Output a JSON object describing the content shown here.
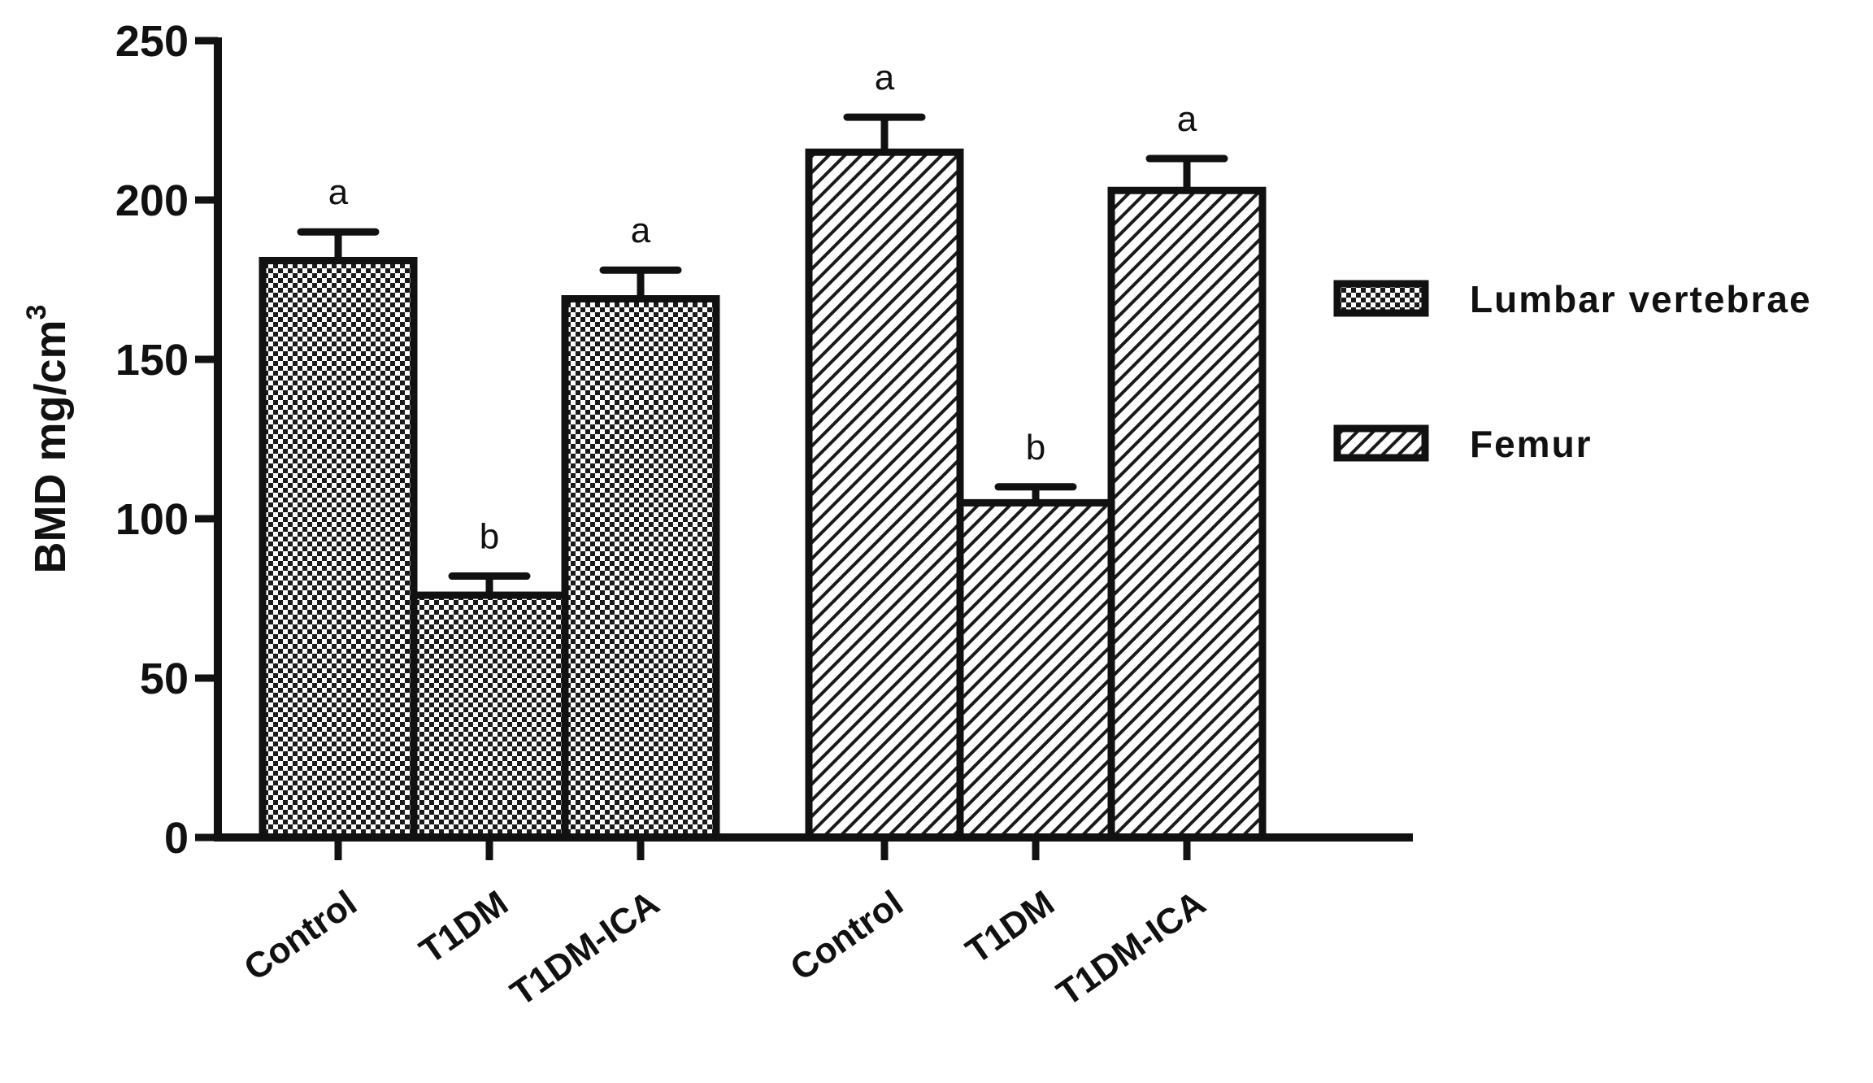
{
  "chart_data": {
    "type": "bar",
    "ylabel": "BMD mg/cm",
    "ylabel_superscript": "3",
    "ylim": [
      0,
      250
    ],
    "yticks": [
      0,
      50,
      100,
      150,
      200,
      250
    ],
    "grid": false,
    "legend_position": "right",
    "groups": [
      {
        "series": "Lumbar vertebrae",
        "categories": [
          "Control",
          "T1DM",
          "T1DM-ICA"
        ],
        "values": [
          181,
          76,
          169
        ],
        "errors": [
          9,
          6,
          9
        ],
        "significance": [
          "a",
          "b",
          "a"
        ]
      },
      {
        "series": "Femur",
        "categories": [
          "Control",
          "T1DM",
          "T1DM-ICA"
        ],
        "values": [
          215,
          105,
          203
        ],
        "errors": [
          11,
          5,
          10
        ],
        "significance": [
          "a",
          "b",
          "a"
        ]
      }
    ],
    "legend": [
      {
        "name": "Lumbar vertebrae",
        "pattern": "checker"
      },
      {
        "name": "Femur",
        "pattern": "diagonal"
      }
    ]
  }
}
